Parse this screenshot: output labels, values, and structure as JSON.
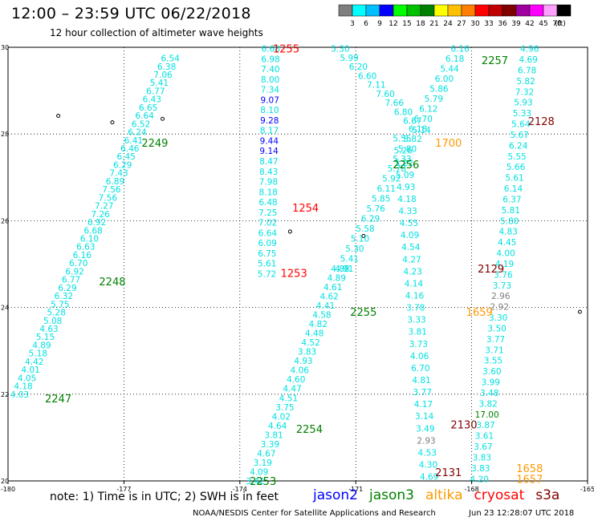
{
  "header": {
    "title": "12:00 – 23:59 UTC 06/22/2018",
    "subtitle": "12 hour collection of altimeter wave heights"
  },
  "colorbar": {
    "unit": "(ft)",
    "ticks": [
      "3",
      "6",
      "9",
      "12",
      "15",
      "18",
      "21",
      "24",
      "27",
      "30",
      "33",
      "36",
      "39",
      "42",
      "45",
      "70"
    ],
    "colors": [
      "#7f7f7f",
      "#00ffff",
      "#00bfff",
      "#0000ff",
      "#00ff00",
      "#00c000",
      "#008000",
      "#ffff00",
      "#ffc000",
      "#ff8000",
      "#ff0000",
      "#c00000",
      "#800000",
      "#a000a0",
      "#ff00ff",
      "#ffa0ff",
      "#000000"
    ]
  },
  "footer": {
    "note": "note: 1) Time is in UTC; 2) SWH is in feet",
    "agency": "NOAA/NESDIS Center for Satellite Applications and Research",
    "generated": "Jun 23 12:28:07 UTC 2018"
  },
  "satellites": [
    {
      "name": "jason2",
      "color": "#0000ff"
    },
    {
      "name": "jason3",
      "color": "#008000"
    },
    {
      "name": "altika",
      "color": "#ff9900"
    },
    {
      "name": "cryosat",
      "color": "#ff0000"
    },
    {
      "name": "s3a",
      "color": "#800000"
    }
  ],
  "chart_data": {
    "type": "scatter",
    "title": "12 hour collection of altimeter wave heights",
    "xlim": [
      -180,
      -165
    ],
    "ylim": [
      20,
      30
    ],
    "x_ticks": [
      "-180",
      "-177",
      "-174",
      "-171",
      "-168",
      "-165"
    ],
    "y_ticks": [
      "20",
      "22",
      "24",
      "26",
      "28",
      "30"
    ],
    "grid": true,
    "default_value_color": "#00e0e0",
    "time_labels": [
      {
        "text": "1255",
        "lon": -172.8,
        "lat": 29.97,
        "color": "#ff0000"
      },
      {
        "text": "1254",
        "lon": -172.3,
        "lat": 26.3,
        "color": "#ff0000"
      },
      {
        "text": "1253",
        "lon": -172.6,
        "lat": 24.8,
        "color": "#ff0000"
      },
      {
        "text": "2249",
        "lon": -176.2,
        "lat": 27.8,
        "color": "#008000"
      },
      {
        "text": "2248",
        "lon": -177.3,
        "lat": 24.6,
        "color": "#008000"
      },
      {
        "text": "2247",
        "lon": -178.7,
        "lat": 21.9,
        "color": "#008000"
      },
      {
        "text": "2257",
        "lon": -167.4,
        "lat": 29.7,
        "color": "#008000"
      },
      {
        "text": "2256",
        "lon": -169.7,
        "lat": 27.3,
        "color": "#008000"
      },
      {
        "text": "2255",
        "lon": -170.8,
        "lat": 23.9,
        "color": "#008000"
      },
      {
        "text": "2254",
        "lon": -172.2,
        "lat": 21.2,
        "color": "#008000"
      },
      {
        "text": "2253",
        "lon": -173.4,
        "lat": 20.0,
        "color": "#008000"
      },
      {
        "text": "1700",
        "lon": -168.6,
        "lat": 27.8,
        "color": "#ff9900"
      },
      {
        "text": "1659",
        "lon": -167.8,
        "lat": 23.9,
        "color": "#ff9900"
      },
      {
        "text": "1658",
        "lon": -166.5,
        "lat": 20.3,
        "color": "#ff9900"
      },
      {
        "text": "1657",
        "lon": -166.5,
        "lat": 20.05,
        "color": "#ff9900"
      },
      {
        "text": "2128",
        "lon": -166.2,
        "lat": 28.3,
        "color": "#800000"
      },
      {
        "text": "2129",
        "lon": -167.5,
        "lat": 24.9,
        "color": "#800000"
      },
      {
        "text": "2130",
        "lon": -168.2,
        "lat": 21.3,
        "color": "#800000"
      },
      {
        "text": "2131",
        "lon": -168.6,
        "lat": 20.2,
        "color": "#800000"
      }
    ],
    "tracks": [
      {
        "name": "2247-2249",
        "start": {
          "lon": -179.7,
          "lat": 22.0
        },
        "end": {
          "lon": -175.8,
          "lat": 29.75
        },
        "values": [
          "4.03",
          "4.18",
          "4.05",
          "4.01",
          "4.42",
          "5.18",
          "4.89",
          "5.15",
          "4.63",
          "5.08",
          "5.28",
          "5.75",
          "6.32",
          "6.29",
          "6.77",
          "6.92",
          "6.70",
          "6.16",
          "6.63",
          "6.10",
          "6.68",
          "6.92",
          "7.26",
          "7.27",
          "7.56",
          "7.56",
          "6.89",
          "7.43",
          "6.29",
          "6.45",
          "6.46",
          "6.41",
          "6.24",
          "6.52",
          "6.64",
          "6.65",
          "6.43",
          "6.77",
          "5.41",
          "7.06",
          "6.38",
          "6.54"
        ]
      },
      {
        "name": "1253-1255",
        "start": {
          "lon": -173.3,
          "lat": 24.78
        },
        "end": {
          "lon": -173.2,
          "lat": 29.97
        },
        "values": [
          "5.72",
          "5.61",
          "6.75",
          "6.09",
          "6.64",
          "7.02",
          "7.25",
          "6.48",
          "8.18",
          "7.98",
          "8.43",
          "8.47",
          "9.14",
          "9.44",
          "8.17",
          "9.28",
          "8.10",
          "9.07",
          "7.34",
          "8.00",
          "7.40",
          "6.98",
          "6.68"
        ],
        "colors": {
          "9.07": "#0000ff",
          "9.28": "#0000ff",
          "9.14": "#0000ff",
          "9.44": "#0000ff"
        }
      },
      {
        "name": "2253-2257 upper",
        "start": {
          "lon": -171.3,
          "lat": 24.9
        },
        "end": {
          "lon": -168.3,
          "lat": 29.97
        },
        "values": [
          "4.91",
          "5.41",
          "5.30",
          "5.10",
          "5.58",
          "6.29",
          "5.76",
          "5.85",
          "6.11",
          "5.92",
          "5.78",
          "5.33",
          "5.80",
          "5.82",
          "6.18",
          "6.70",
          "6.12",
          "5.79",
          "5.86",
          "6.00",
          "5.44",
          "6.18",
          "6.16"
        ]
      },
      {
        "name": "2253-2257 lower",
        "start": {
          "lon": -173.6,
          "lat": 20.0
        },
        "end": {
          "lon": -171.4,
          "lat": 24.9
        },
        "values": [
          "3.42",
          "4.09",
          "3.19",
          "4.67",
          "3.39",
          "3.81",
          "4.64",
          "4.02",
          "3.75",
          "4.51",
          "4.47",
          "4.60",
          "4.06",
          "4.93",
          "3.83",
          "4.52",
          "4.48",
          "4.82",
          "4.58",
          "4.41",
          "4.62",
          "4.61",
          "4.89",
          "4.88"
        ]
      },
      {
        "name": "west descending",
        "start": {
          "lon": -171.4,
          "lat": 29.97
        },
        "end": {
          "lon": -169.3,
          "lat": 28.1
        },
        "values": [
          "5.30",
          "5.99",
          "6.20",
          "6.60",
          "7.11",
          "7.60",
          "7.66",
          "6.80",
          "6.67",
          "5.14"
        ]
      },
      {
        "name": "cryosat descending",
        "start": {
          "lon": -169.8,
          "lat": 27.9
        },
        "end": {
          "lon": -169.1,
          "lat": 20.1
        },
        "values": [
          "5.55",
          "5.26",
          "5.22",
          "5.09",
          "4.93",
          "4.18",
          "4.33",
          "4.55",
          "4.09",
          "4.54",
          "4.27",
          "4.23",
          "4.14",
          "4.16",
          "3.78",
          "3.33",
          "3.81",
          "3.73",
          "4.06",
          "6.70",
          "4.81",
          "3.77",
          "4.17",
          "3.14",
          "3.49",
          "2.93",
          "4.53",
          "4.30",
          "4.69"
        ],
        "colors": {
          "2.93": "#7f7f7f"
        }
      },
      {
        "name": "s3a descending",
        "start": {
          "lon": -166.5,
          "lat": 29.97
        },
        "end": {
          "lon": -167.8,
          "lat": 20.05
        },
        "values": [
          "4.96",
          "4.69",
          "6.78",
          "5.82",
          "7.32",
          "5.93",
          "5.33",
          "5.64",
          "5.67",
          "6.24",
          "5.55",
          "5.66",
          "5.61",
          "6.14",
          "6.37",
          "5.81",
          "5.80",
          "4.83",
          "4.45",
          "4.00",
          "4.19",
          "3.76",
          "3.73",
          "2.96",
          "2.92",
          "3.30",
          "3.50",
          "3.77",
          "3.71",
          "3.55",
          "3.60",
          "3.99",
          "3.48",
          "3.82",
          "17.00",
          "3.87",
          "3.61",
          "3.67",
          "3.83",
          "3.83",
          "4.20"
        ],
        "colors": {
          "2.96": "#7f7f7f",
          "2.92": "#7f7f7f",
          "17.00": "#008000"
        }
      }
    ]
  }
}
